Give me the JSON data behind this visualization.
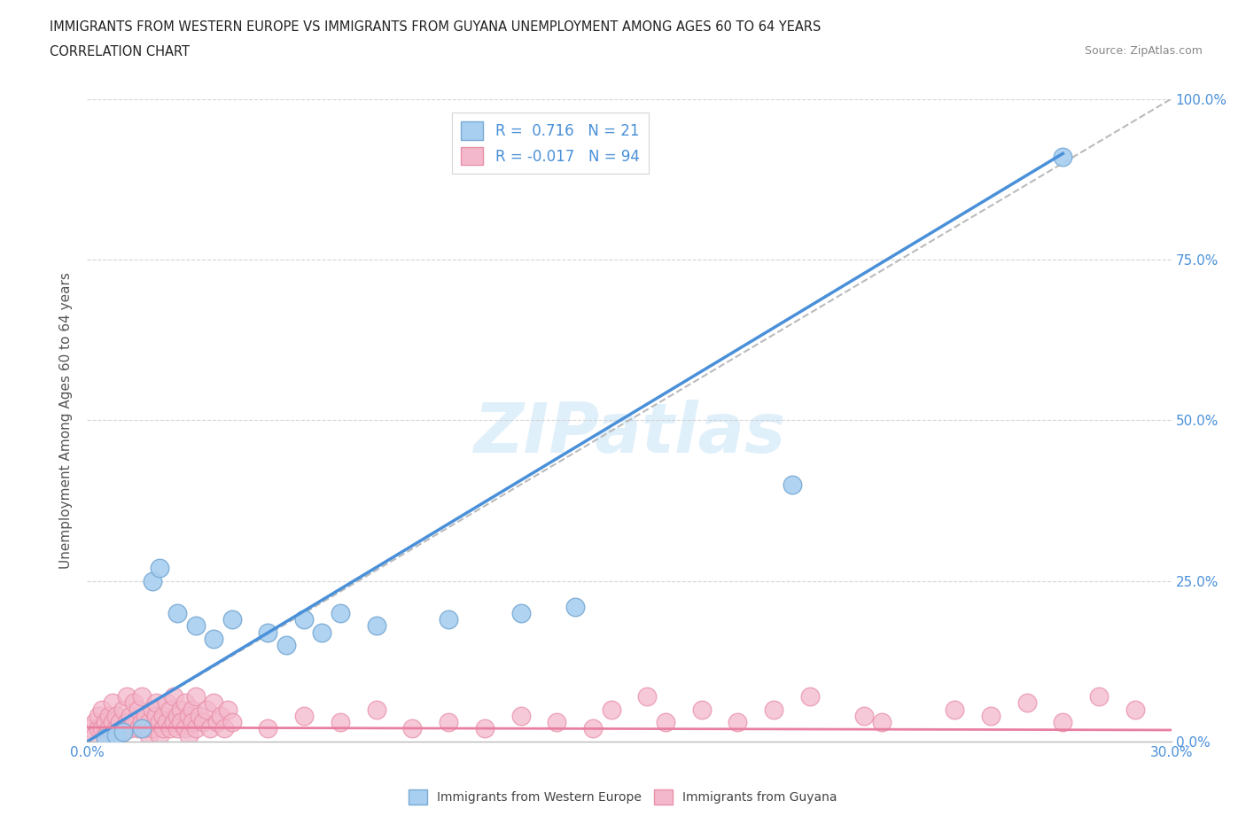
{
  "title_line1": "IMMIGRANTS FROM WESTERN EUROPE VS IMMIGRANTS FROM GUYANA UNEMPLOYMENT AMONG AGES 60 TO 64 YEARS",
  "title_line2": "CORRELATION CHART",
  "source_text": "Source: ZipAtlas.com",
  "ylabel": "Unemployment Among Ages 60 to 64 years",
  "xlim": [
    0,
    0.3
  ],
  "ylim": [
    0,
    1.0
  ],
  "xticks": [
    0.0,
    0.05,
    0.1,
    0.15,
    0.2,
    0.25,
    0.3
  ],
  "yticks": [
    0.0,
    0.25,
    0.5,
    0.75,
    1.0
  ],
  "yticklabels": [
    "0.0%",
    "25.0%",
    "50.0%",
    "75.0%",
    "100.0%"
  ],
  "blue_R": 0.716,
  "blue_N": 21,
  "pink_R": -0.017,
  "pink_N": 94,
  "blue_color": "#a8cff0",
  "pink_color": "#f4b8cc",
  "blue_edge": "#7aaad4",
  "pink_edge": "#e890a8",
  "blue_scatter": [
    [
      0.005,
      0.005
    ],
    [
      0.008,
      0.01
    ],
    [
      0.01,
      0.015
    ],
    [
      0.015,
      0.02
    ],
    [
      0.018,
      0.25
    ],
    [
      0.02,
      0.27
    ],
    [
      0.025,
      0.2
    ],
    [
      0.03,
      0.18
    ],
    [
      0.035,
      0.16
    ],
    [
      0.04,
      0.19
    ],
    [
      0.05,
      0.17
    ],
    [
      0.055,
      0.15
    ],
    [
      0.06,
      0.19
    ],
    [
      0.065,
      0.17
    ],
    [
      0.07,
      0.2
    ],
    [
      0.08,
      0.18
    ],
    [
      0.1,
      0.19
    ],
    [
      0.12,
      0.2
    ],
    [
      0.135,
      0.21
    ],
    [
      0.195,
      0.4
    ],
    [
      0.27,
      0.91
    ]
  ],
  "pink_scatter": [
    [
      0.001,
      0.02
    ],
    [
      0.002,
      0.03
    ],
    [
      0.002,
      0.01
    ],
    [
      0.003,
      0.02
    ],
    [
      0.003,
      0.04
    ],
    [
      0.004,
      0.02
    ],
    [
      0.004,
      0.05
    ],
    [
      0.005,
      0.03
    ],
    [
      0.005,
      0.01
    ],
    [
      0.006,
      0.04
    ],
    [
      0.006,
      0.02
    ],
    [
      0.007,
      0.03
    ],
    [
      0.007,
      0.06
    ],
    [
      0.008,
      0.02
    ],
    [
      0.008,
      0.04
    ],
    [
      0.009,
      0.03
    ],
    [
      0.009,
      0.01
    ],
    [
      0.01,
      0.05
    ],
    [
      0.01,
      0.02
    ],
    [
      0.011,
      0.03
    ],
    [
      0.011,
      0.07
    ],
    [
      0.012,
      0.04
    ],
    [
      0.012,
      0.02
    ],
    [
      0.013,
      0.06
    ],
    [
      0.013,
      0.03
    ],
    [
      0.014,
      0.02
    ],
    [
      0.014,
      0.05
    ],
    [
      0.015,
      0.03
    ],
    [
      0.015,
      0.07
    ],
    [
      0.016,
      0.02
    ],
    [
      0.016,
      0.04
    ],
    [
      0.017,
      0.03
    ],
    [
      0.017,
      0.01
    ],
    [
      0.018,
      0.05
    ],
    [
      0.018,
      0.02
    ],
    [
      0.019,
      0.04
    ],
    [
      0.019,
      0.06
    ],
    [
      0.02,
      0.03
    ],
    [
      0.02,
      0.01
    ],
    [
      0.021,
      0.04
    ],
    [
      0.021,
      0.02
    ],
    [
      0.022,
      0.06
    ],
    [
      0.022,
      0.03
    ],
    [
      0.023,
      0.05
    ],
    [
      0.023,
      0.02
    ],
    [
      0.024,
      0.03
    ],
    [
      0.024,
      0.07
    ],
    [
      0.025,
      0.04
    ],
    [
      0.025,
      0.02
    ],
    [
      0.026,
      0.05
    ],
    [
      0.026,
      0.03
    ],
    [
      0.027,
      0.06
    ],
    [
      0.027,
      0.02
    ],
    [
      0.028,
      0.04
    ],
    [
      0.028,
      0.01
    ],
    [
      0.029,
      0.05
    ],
    [
      0.029,
      0.03
    ],
    [
      0.03,
      0.07
    ],
    [
      0.03,
      0.02
    ],
    [
      0.031,
      0.04
    ],
    [
      0.032,
      0.03
    ],
    [
      0.033,
      0.05
    ],
    [
      0.034,
      0.02
    ],
    [
      0.035,
      0.06
    ],
    [
      0.036,
      0.03
    ],
    [
      0.037,
      0.04
    ],
    [
      0.038,
      0.02
    ],
    [
      0.039,
      0.05
    ],
    [
      0.04,
      0.03
    ],
    [
      0.05,
      0.02
    ],
    [
      0.06,
      0.04
    ],
    [
      0.07,
      0.03
    ],
    [
      0.08,
      0.05
    ],
    [
      0.09,
      0.02
    ],
    [
      0.1,
      0.03
    ],
    [
      0.11,
      0.02
    ],
    [
      0.12,
      0.04
    ],
    [
      0.13,
      0.03
    ],
    [
      0.14,
      0.02
    ],
    [
      0.155,
      0.07
    ],
    [
      0.16,
      0.03
    ],
    [
      0.17,
      0.05
    ],
    [
      0.18,
      0.03
    ],
    [
      0.19,
      0.05
    ],
    [
      0.2,
      0.07
    ],
    [
      0.22,
      0.03
    ],
    [
      0.24,
      0.05
    ],
    [
      0.25,
      0.04
    ],
    [
      0.26,
      0.06
    ],
    [
      0.27,
      0.03
    ],
    [
      0.28,
      0.07
    ],
    [
      0.29,
      0.05
    ],
    [
      0.145,
      0.05
    ],
    [
      0.215,
      0.04
    ]
  ],
  "blue_line_x": [
    0.0,
    0.27
  ],
  "blue_line_y": [
    0.0,
    0.915
  ],
  "pink_line_x": [
    0.0,
    0.3
  ],
  "pink_line_y": [
    0.022,
    0.018
  ],
  "diagonal_line_x": [
    0.0,
    0.3
  ],
  "diagonal_line_y": [
    0.0,
    1.0
  ],
  "watermark": "ZIPatlas",
  "legend_blue_label": "Immigrants from Western Europe",
  "legend_pink_label": "Immigrants from Guyana"
}
